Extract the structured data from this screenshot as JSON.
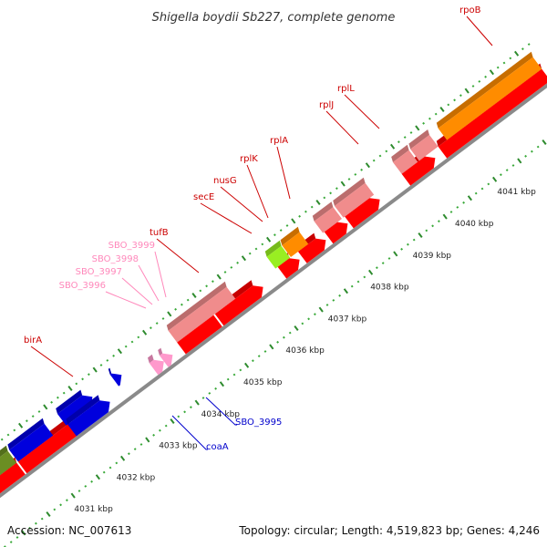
{
  "title": "Shigella boydii Sb227, complete genome",
  "footer": {
    "accession": "Accession: NC_007613",
    "summary": "Topology: circular; Length: 4,519,823 bp; Genes: 4,246"
  },
  "colors": {
    "background": "#ffffff",
    "tick_dark": "#2e8b2e",
    "tick_light": "#37a837",
    "backbone": "#8a8a8a",
    "red": "#ff0000",
    "pink": "#f08c8c",
    "orange": "#ff8c00",
    "lime": "#99ee22",
    "olive": "#6b8e23",
    "blue": "#0000dd",
    "light_pink": "#ff99cc",
    "label_red": "#cc0000",
    "label_pink": "#ff88bb",
    "label_blue": "#0000cc"
  },
  "scale": {
    "unit": "kbp",
    "ticks": [
      {
        "label": "4031 kbp"
      },
      {
        "label": "4032 kbp"
      },
      {
        "label": "4033 kbp"
      },
      {
        "label": "4034 kbp"
      },
      {
        "label": "4035 kbp"
      },
      {
        "label": "4036 kbp"
      },
      {
        "label": "4037 kbp"
      },
      {
        "label": "4038 kbp"
      },
      {
        "label": "4039 kbp"
      },
      {
        "label": "4040 kbp"
      },
      {
        "label": "4041 kbp"
      }
    ]
  },
  "gene_labels": [
    {
      "name": "rpoB",
      "color": "label_red"
    },
    {
      "name": "rplL",
      "color": "label_red"
    },
    {
      "name": "rplJ",
      "color": "label_red"
    },
    {
      "name": "rplA",
      "color": "label_red"
    },
    {
      "name": "rplK",
      "color": "label_red"
    },
    {
      "name": "nusG",
      "color": "label_red"
    },
    {
      "name": "secE",
      "color": "label_red"
    },
    {
      "name": "tufB",
      "color": "label_red"
    },
    {
      "name": "SBO_3999",
      "color": "label_pink"
    },
    {
      "name": "SBO_3998",
      "color": "label_pink"
    },
    {
      "name": "SBO_3997",
      "color": "label_pink"
    },
    {
      "name": "SBO_3996",
      "color": "label_pink"
    },
    {
      "name": "birA",
      "color": "label_red"
    },
    {
      "name": "SBO_3995",
      "color": "label_blue"
    },
    {
      "name": "coaA",
      "color": "label_blue"
    }
  ]
}
